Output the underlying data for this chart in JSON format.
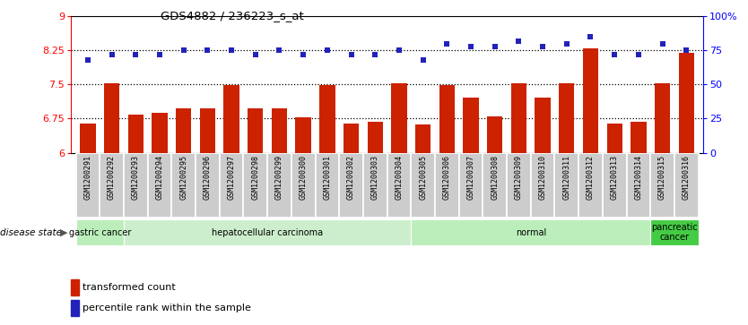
{
  "title": "GDS4882 / 236223_s_at",
  "samples": [
    "GSM1200291",
    "GSM1200292",
    "GSM1200293",
    "GSM1200294",
    "GSM1200295",
    "GSM1200296",
    "GSM1200297",
    "GSM1200298",
    "GSM1200299",
    "GSM1200300",
    "GSM1200301",
    "GSM1200302",
    "GSM1200303",
    "GSM1200304",
    "GSM1200305",
    "GSM1200306",
    "GSM1200307",
    "GSM1200308",
    "GSM1200309",
    "GSM1200310",
    "GSM1200311",
    "GSM1200312",
    "GSM1200313",
    "GSM1200314",
    "GSM1200315",
    "GSM1200316"
  ],
  "transformed_count": [
    6.65,
    7.52,
    6.84,
    6.87,
    6.97,
    6.97,
    7.48,
    6.97,
    6.97,
    6.77,
    7.48,
    6.65,
    6.68,
    7.52,
    6.62,
    7.48,
    7.22,
    6.8,
    7.52,
    7.22,
    7.52,
    8.3,
    6.65,
    6.68,
    7.52,
    8.2
  ],
  "percentile_rank": [
    68,
    72,
    72,
    72,
    75,
    75,
    75,
    72,
    75,
    72,
    75,
    72,
    72,
    75,
    68,
    80,
    78,
    78,
    82,
    78,
    80,
    85,
    72,
    72,
    80,
    75
  ],
  "ylim_left": [
    6,
    9
  ],
  "ylim_right": [
    0,
    100
  ],
  "yticks_left": [
    6,
    6.75,
    7.5,
    8.25,
    9
  ],
  "ytick_labels_left": [
    "6",
    "6.75",
    "7.5",
    "8.25",
    "9"
  ],
  "yticks_right": [
    0,
    25,
    50,
    75,
    100
  ],
  "ytick_labels_right": [
    "0",
    "25",
    "50",
    "75",
    "100%"
  ],
  "hlines": [
    6.75,
    7.5,
    8.25
  ],
  "bar_color": "#CC2200",
  "dot_color": "#2222BB",
  "disease_groups": [
    {
      "label": "gastric cancer",
      "start": 0,
      "end": 2,
      "color": "#BBEEBB"
    },
    {
      "label": "hepatocellular carcinoma",
      "start": 2,
      "end": 14,
      "color": "#CCEECC"
    },
    {
      "label": "normal",
      "start": 14,
      "end": 24,
      "color": "#BBEEBB"
    },
    {
      "label": "pancreatic\ncancer",
      "start": 24,
      "end": 26,
      "color": "#44CC44"
    }
  ],
  "legend_bar_label": "transformed count",
  "legend_dot_label": "percentile rank within the sample",
  "disease_state_label": "disease state",
  "xtick_bg_color": "#CCCCCC",
  "xtick_border_color": "#FFFFFF",
  "fig_width": 8.34,
  "fig_height": 3.63,
  "dpi": 100
}
